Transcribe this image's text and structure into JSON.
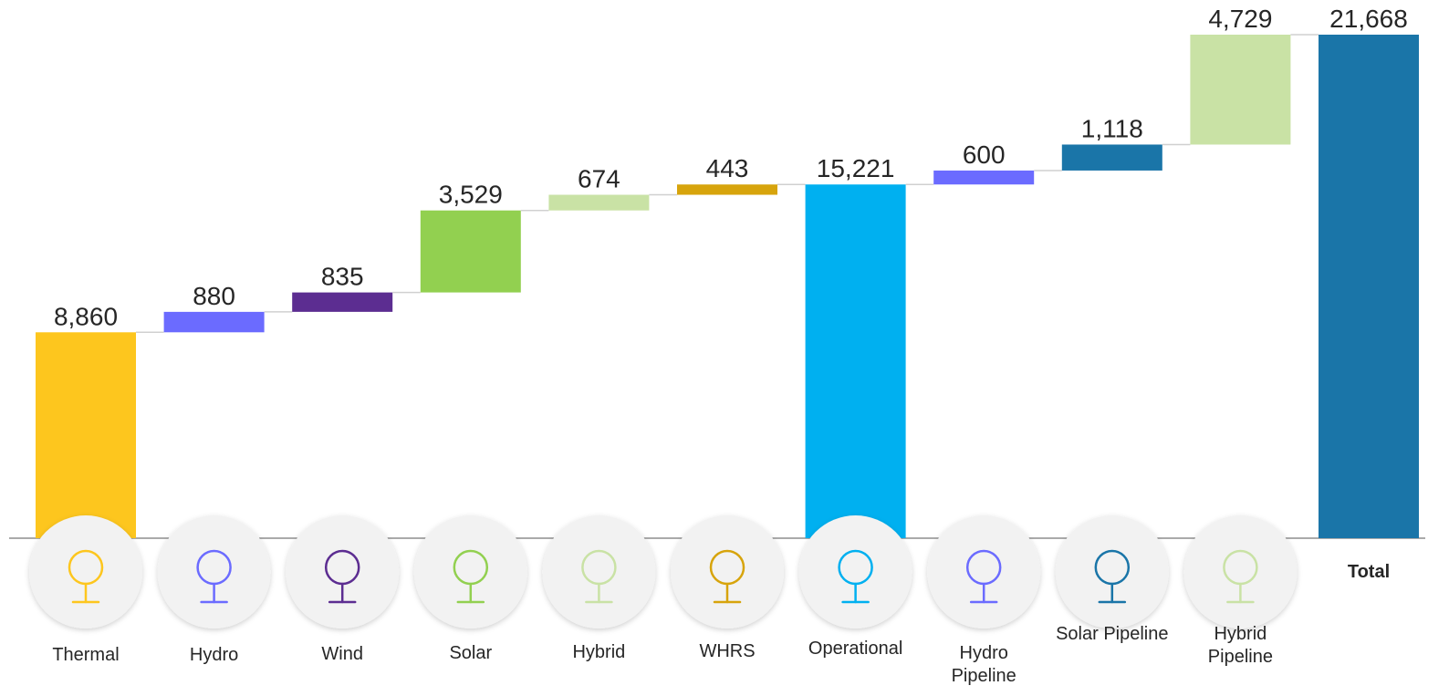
{
  "chart_data": {
    "type": "waterfall",
    "categories": [
      "Thermal",
      "Hydro",
      "Wind",
      "Solar",
      "Hybrid",
      "WHRS",
      "Operational",
      "Hydro Pipeline",
      "Solar Pipeline",
      "Hybrid Pipeline",
      "Total"
    ],
    "values": [
      8860,
      880,
      835,
      3529,
      674,
      443,
      15221,
      600,
      1118,
      4729,
      21668
    ],
    "value_labels": [
      "8,860",
      "880",
      "835",
      "3,529",
      "674",
      "443",
      "15,221",
      "600",
      "1,118",
      "4,729",
      "21,668"
    ],
    "totals": [
      false,
      false,
      false,
      false,
      false,
      false,
      true,
      false,
      false,
      false,
      true
    ],
    "colors": [
      "#fdc61e",
      "#6b6bff",
      "#5c2d91",
      "#92d050",
      "#c9e2a5",
      "#d7a40c",
      "#00b0f0",
      "#6b6bff",
      "#1a75a8",
      "#c9e2a5",
      "#1a75a8"
    ]
  }
}
